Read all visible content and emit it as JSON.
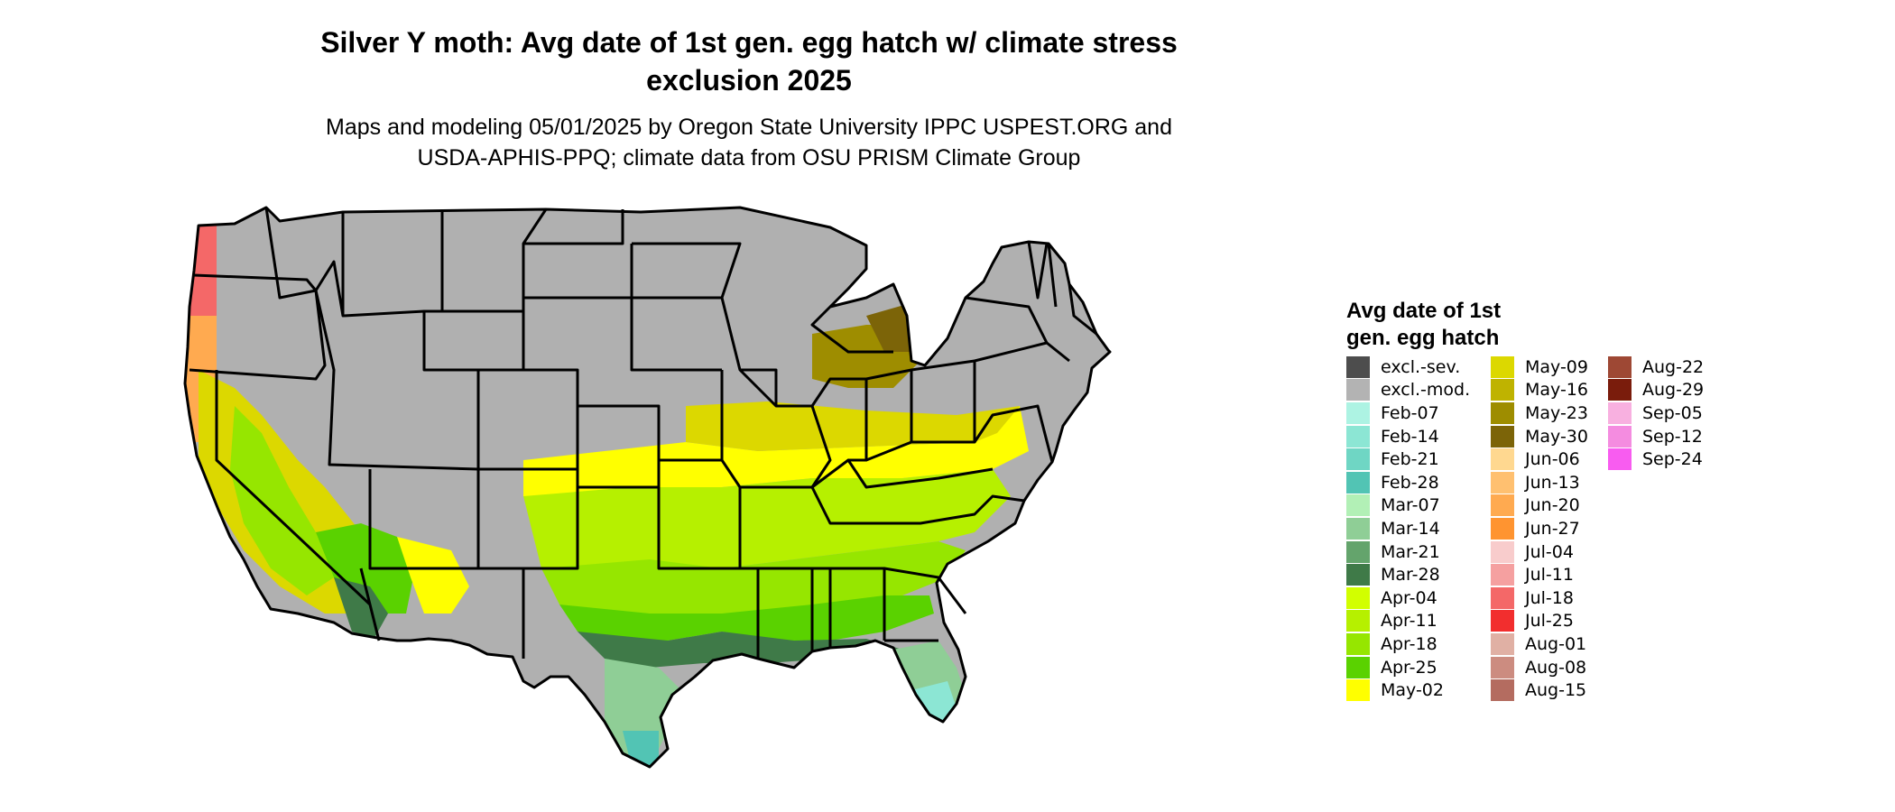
{
  "title_line1": "Silver Y moth: Avg date of 1st gen. egg hatch w/ climate stress",
  "title_line2": "exclusion 2025",
  "subtitle_line1": "Maps and modeling 05/01/2025 by Oregon State University IPPC USPEST.ORG and",
  "subtitle_line2": "USDA-APHIS-PPQ; climate data from OSU PRISM Climate Group",
  "map": {
    "region": "Contiguous United States",
    "excluded_color": "#b0b0b0",
    "border_color": "#000000"
  },
  "legend": {
    "title_line1": "Avg date of 1st",
    "title_line2": "gen. egg hatch",
    "items": [
      {
        "label": "excl.-sev.",
        "color": "#4d4d4d"
      },
      {
        "label": "excl.-mod.",
        "color": "#b3b3b3"
      },
      {
        "label": "Feb-07",
        "color": "#adf3e3"
      },
      {
        "label": "Feb-14",
        "color": "#8ce6d4"
      },
      {
        "label": "Feb-21",
        "color": "#6fd6c4"
      },
      {
        "label": "Feb-28",
        "color": "#52c4b4"
      },
      {
        "label": "Mar-07",
        "color": "#b2f0b6"
      },
      {
        "label": "Mar-14",
        "color": "#8fce96"
      },
      {
        "label": "Mar-21",
        "color": "#64a46c"
      },
      {
        "label": "Mar-28",
        "color": "#3f7a48"
      },
      {
        "label": "Apr-04",
        "color": "#d2ff00"
      },
      {
        "label": "Apr-11",
        "color": "#b6f000"
      },
      {
        "label": "Apr-18",
        "color": "#96e600"
      },
      {
        "label": "Apr-25",
        "color": "#5ad200"
      },
      {
        "label": "May-02",
        "color": "#ffff00"
      },
      {
        "label": "May-09",
        "color": "#dcd800"
      },
      {
        "label": "May-16",
        "color": "#bfb300"
      },
      {
        "label": "May-23",
        "color": "#9e8d00"
      },
      {
        "label": "May-30",
        "color": "#7c6408"
      },
      {
        "label": "Jun-06",
        "color": "#ffd890"
      },
      {
        "label": "Jun-13",
        "color": "#ffc070"
      },
      {
        "label": "Jun-20",
        "color": "#ffaa50"
      },
      {
        "label": "Jun-27",
        "color": "#ff9430"
      },
      {
        "label": "Jul-04",
        "color": "#f8cccc"
      },
      {
        "label": "Jul-11",
        "color": "#f5a0a0"
      },
      {
        "label": "Jul-18",
        "color": "#f46868"
      },
      {
        "label": "Jul-25",
        "color": "#f22e2e"
      },
      {
        "label": "Aug-01",
        "color": "#e0b0a4"
      },
      {
        "label": "Aug-08",
        "color": "#cc8c80"
      },
      {
        "label": "Aug-15",
        "color": "#b46c60"
      },
      {
        "label": "Aug-22",
        "color": "#9e4834"
      },
      {
        "label": "Aug-29",
        "color": "#7a1c0c"
      },
      {
        "label": "Sep-05",
        "color": "#f8b0e0"
      },
      {
        "label": "Sep-12",
        "color": "#f48ce0"
      },
      {
        "label": "Sep-24",
        "color": "#f85cf0"
      }
    ]
  }
}
